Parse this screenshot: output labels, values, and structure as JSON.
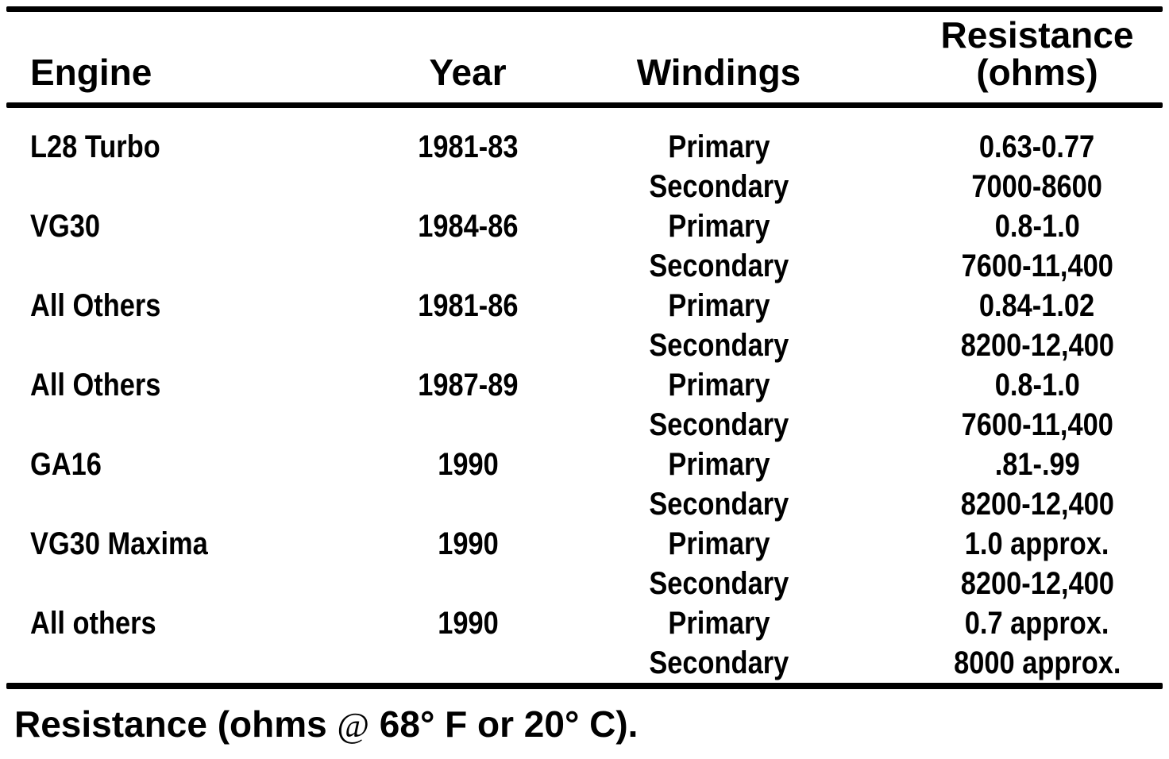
{
  "header": {
    "engine": "Engine",
    "year": "Year",
    "windings": "Windings",
    "resistance_line1": "Resistance",
    "resistance_line2": "(ohms)"
  },
  "rows": [
    {
      "engine": "L28 Turbo",
      "year": "1981-83",
      "windings": [
        "Primary",
        "Secondary"
      ],
      "resistance": [
        "0.63-0.77",
        "7000-8600"
      ]
    },
    {
      "engine": "VG30",
      "year": "1984-86",
      "windings": [
        "Primary",
        "Secondary"
      ],
      "resistance": [
        "0.8-1.0",
        "7600-11,400"
      ]
    },
    {
      "engine": "All Others",
      "year": "1981-86",
      "windings": [
        "Primary",
        "Secondary"
      ],
      "resistance": [
        "0.84-1.02",
        "8200-12,400"
      ]
    },
    {
      "engine": "All Others",
      "year": "1987-89",
      "windings": [
        "Primary",
        "Secondary"
      ],
      "resistance": [
        "0.8-1.0",
        "7600-11,400"
      ]
    },
    {
      "engine": "GA16",
      "year": "1990",
      "windings": [
        "Primary",
        "Secondary"
      ],
      "resistance": [
        ".81-.99",
        "8200-12,400"
      ]
    },
    {
      "engine": "VG30 Maxima",
      "year": "1990",
      "windings": [
        "Primary",
        "Secondary"
      ],
      "resistance": [
        "1.0 approx.",
        "8200-12,400"
      ]
    },
    {
      "engine": "All others",
      "year": "1990",
      "windings": [
        "Primary",
        "Secondary"
      ],
      "resistance": [
        "0.7 approx.",
        "8000 approx."
      ]
    }
  ],
  "caption": {
    "prefix": "Resistance (ohms ",
    "at_symbol": "@",
    "suffix": " 68° F or 20° C)."
  },
  "colors": {
    "ink": "#000000",
    "paper": "#ffffff"
  }
}
